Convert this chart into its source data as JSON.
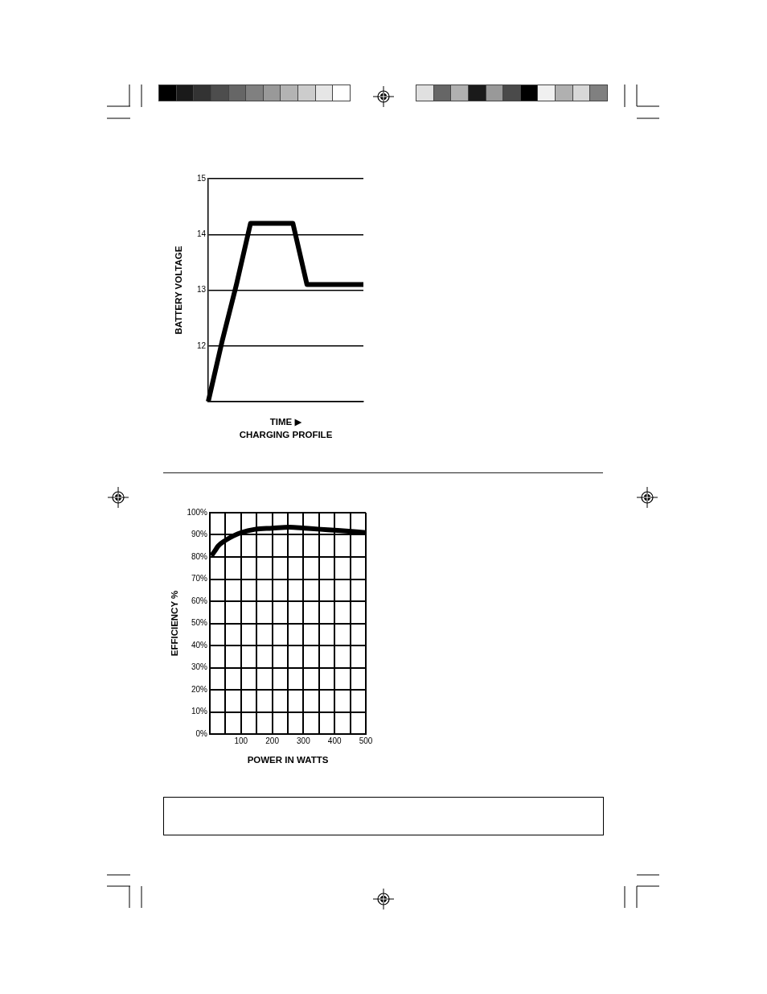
{
  "chart_data": [
    {
      "type": "line",
      "xlabel": "TIME ▶",
      "ylabel": "BATTERY VOLTAGE",
      "annotations": [
        "CHARGING PROFILE"
      ],
      "categories": [
        null,
        null,
        null,
        null,
        null,
        null,
        null,
        null,
        null,
        null,
        null,
        null
      ],
      "series": [
        {
          "color": "#000000",
          "values": [
            11,
            12.1,
            13.1,
            14.2,
            14.2,
            14.2,
            14.2,
            13.1,
            13.1,
            13.1,
            13.1,
            13.1
          ]
        }
      ],
      "ylim": [
        11,
        15
      ],
      "yticks": [
        {
          "value": 11,
          "label": null
        },
        12,
        13,
        14,
        15
      ],
      "grid": "y",
      "tick_labels": "y",
      "marker": "none"
    },
    {
      "type": "line",
      "xlabel": "POWER IN WATTS",
      "ylabel": "EFFICIENCY %",
      "x": [
        5,
        15,
        27,
        50,
        75,
        100,
        145,
        200,
        255,
        305,
        355,
        410,
        500
      ],
      "series": [
        {
          "color": "#000000",
          "values": [
            80.5,
            82.5,
            85,
            87.5,
            89.5,
            91,
            92.5,
            93,
            93.5,
            93,
            92.5,
            92,
            91
          ]
        }
      ],
      "xlim": [
        0,
        500
      ],
      "xticks": [
        {
          "value": 0,
          "label": null
        },
        {
          "value": 50,
          "label": null
        },
        100,
        {
          "value": 150,
          "label": null
        },
        200,
        {
          "value": 250,
          "label": null
        },
        300,
        {
          "value": 350,
          "label": null
        },
        400,
        {
          "value": 450,
          "label": null
        },
        500
      ],
      "ylim": [
        0,
        100
      ],
      "yticks": [
        {
          "value": 0,
          "label": "0%"
        },
        {
          "value": 10,
          "label": "10%"
        },
        {
          "value": 20,
          "label": "20%"
        },
        {
          "value": 30,
          "label": "30%"
        },
        {
          "value": 40,
          "label": "40%"
        },
        {
          "value": 50,
          "label": "50%"
        },
        {
          "value": 60,
          "label": "60%"
        },
        {
          "value": 70,
          "label": "70%"
        },
        {
          "value": 80,
          "label": "80%"
        },
        {
          "value": 90,
          "label": "90%"
        },
        {
          "value": 100,
          "label": "100%"
        }
      ],
      "grid": true,
      "marker": "none"
    }
  ]
}
